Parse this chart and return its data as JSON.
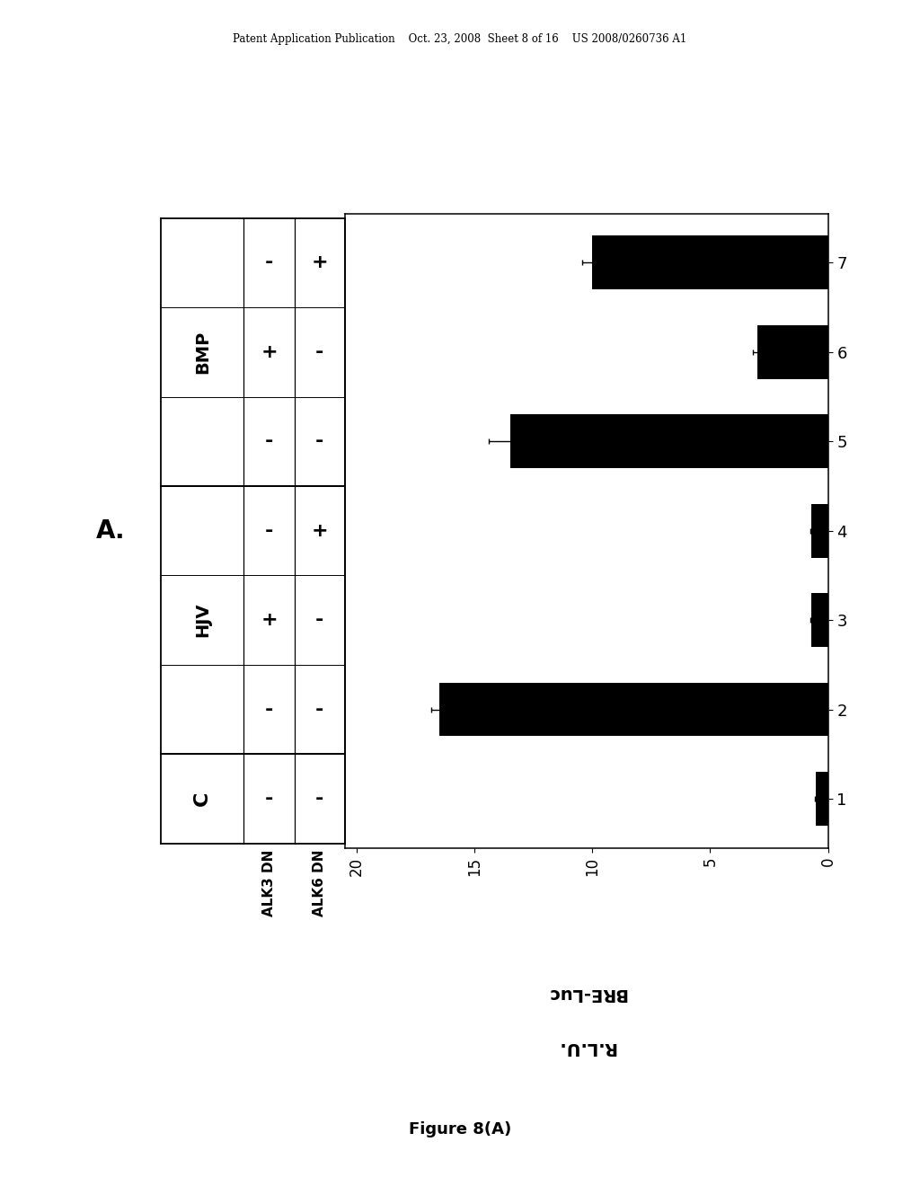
{
  "patent_header": "Patent Application Publication    Oct. 23, 2008  Sheet 8 of 16    US 2008/0260736 A1",
  "figure_caption": "Figure 8(A)",
  "bar_values": [
    0.5,
    16.5,
    0.7,
    0.7,
    13.5,
    3.0,
    10.0
  ],
  "bar_errors": [
    0.05,
    0.35,
    0.05,
    0.05,
    0.9,
    0.18,
    0.42
  ],
  "bar_labels": [
    "1",
    "2",
    "3",
    "4",
    "5",
    "6",
    "7"
  ],
  "hjv_vals": [
    "-",
    "-",
    "+",
    "-",
    "-",
    "+",
    "-"
  ],
  "bmp_vals": [
    "-",
    "-",
    "-",
    "+",
    "-",
    "-",
    "+"
  ],
  "group_labels": [
    "C",
    "HJV",
    "BMP"
  ],
  "group_bar_ranges": [
    [
      1,
      1
    ],
    [
      2,
      4
    ],
    [
      5,
      7
    ]
  ],
  "xlim_max": 20,
  "xticks": [
    0,
    5,
    10,
    15,
    20
  ],
  "title_letter": "A.",
  "xlabel_line1": "BRE-Luc",
  "xlabel_line2": "R.L.U.",
  "bar_color": "#000000",
  "bg_color": "#ffffff",
  "bar_height": 0.6
}
